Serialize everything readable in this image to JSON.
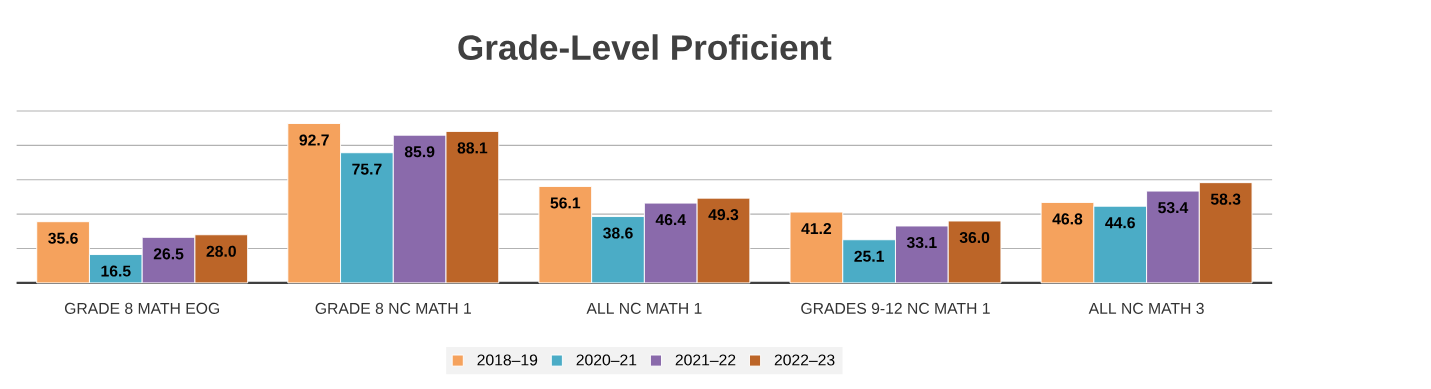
{
  "chart_data": {
    "type": "bar",
    "title": "Grade-Level Proficient",
    "categories": [
      "GRADE 8 MATH EOG",
      "GRADE 8 NC MATH 1",
      "ALL NC MATH 1",
      "GRADES 9-12 NC MATH 1",
      "ALL NC MATH 3"
    ],
    "series": [
      {
        "name": "2018–19",
        "color": "#f5a25d",
        "values": [
          35.6,
          92.7,
          56.1,
          41.2,
          46.8
        ],
        "value_labels": [
          "35.6",
          "92.7",
          "56.1",
          "41.2",
          "46.8"
        ]
      },
      {
        "name": "2020–21",
        "color": "#4bacc6",
        "values": [
          16.5,
          75.7,
          38.6,
          25.1,
          44.6
        ],
        "value_labels": [
          "16.5",
          "75.7",
          "38.6",
          "25.1",
          "44.6"
        ]
      },
      {
        "name": "2021–22",
        "color": "#8a6aab",
        "values": [
          26.5,
          85.9,
          46.4,
          33.1,
          53.4
        ],
        "value_labels": [
          "26.5",
          "85.9",
          "46.4",
          "33.1",
          "53.4"
        ]
      },
      {
        "name": "2022–23",
        "color": "#bc6528",
        "values": [
          28.0,
          88.1,
          49.3,
          36.0,
          58.3
        ],
        "value_labels": [
          "28.0",
          "88.1",
          "49.3",
          "36.0",
          "58.3"
        ]
      }
    ],
    "ylim": [
      0,
      100
    ],
    "yticks": [
      {
        "value": 0,
        "label": null
      },
      {
        "value": 20,
        "label": null
      },
      {
        "value": 40,
        "label": null
      },
      {
        "value": 60,
        "label": null
      },
      {
        "value": 80,
        "label": null
      },
      {
        "value": 100,
        "label": null
      }
    ],
    "tick_labels": "x",
    "grid": "y",
    "legend": "bottom"
  }
}
